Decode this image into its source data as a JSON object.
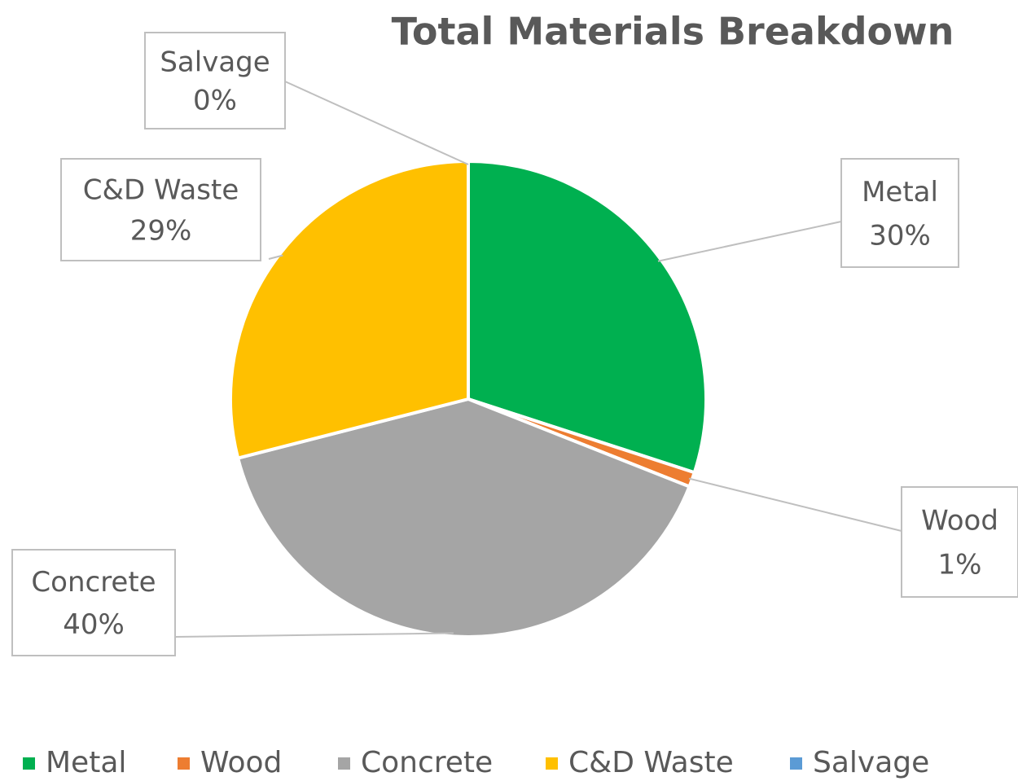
{
  "chart_data": {
    "type": "pie",
    "title": "Total Materials Breakdown",
    "categories": [
      "Metal",
      "Wood",
      "Concrete",
      "C&D Waste",
      "Salvage"
    ],
    "values": [
      30,
      1,
      40,
      29,
      0
    ],
    "value_labels": [
      "30%",
      "1%",
      "40%",
      "29%",
      "0%"
    ],
    "colors": [
      "#00b050",
      "#ed7d31",
      "#a5a5a5",
      "#ffc000",
      "#5b9bd5"
    ],
    "legend": "bottom"
  }
}
